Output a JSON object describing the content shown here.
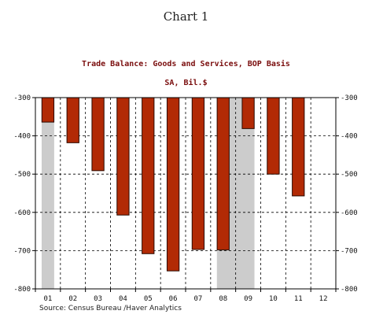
{
  "page": {
    "caption": "Chart 1",
    "source": "Source:  Census Bureau /Haver Analytics"
  },
  "chart_data": {
    "type": "bar",
    "title": "Trade Balance:  Goods and Services, BOP Basis",
    "subtitle": "SA, Bil.$",
    "categories": [
      "01",
      "02",
      "03",
      "04",
      "05",
      "06",
      "07",
      "08",
      "09",
      "10",
      "11",
      "12"
    ],
    "values": [
      -364,
      -418,
      -491,
      -607,
      -708,
      -753,
      -697,
      -698,
      -381,
      -500,
      -557,
      null
    ],
    "yticks": [
      -300,
      -400,
      -500,
      -600,
      -700,
      -800
    ],
    "ylim": [
      -800,
      -300
    ],
    "recession_shading": [
      {
        "from": "01",
        "to": "01"
      },
      {
        "from": "08",
        "to": "09"
      }
    ],
    "grid": true,
    "legend": "none",
    "colors": {
      "bar_fill": "#b22a05",
      "bar_outline": "#2a0a00",
      "shading": "#cccccc",
      "title": "#7a0d0d"
    }
  }
}
